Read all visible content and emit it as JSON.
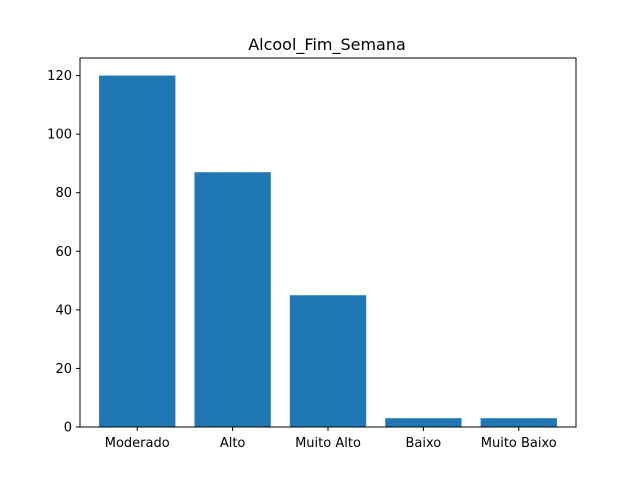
{
  "chart_data": {
    "type": "bar",
    "title": "Alcool_Fim_Semana",
    "xlabel": "",
    "ylabel": "",
    "categories": [
      "Moderado",
      "Alto",
      "Muito Alto",
      "Baixo",
      "Muito Baixo"
    ],
    "values": [
      120,
      87,
      45,
      3,
      3
    ],
    "ylim": [
      0,
      126
    ],
    "yticks": [
      0,
      20,
      40,
      60,
      80,
      100,
      120
    ],
    "bar_color": "#1f77b4",
    "grid": false,
    "legend": "none"
  }
}
